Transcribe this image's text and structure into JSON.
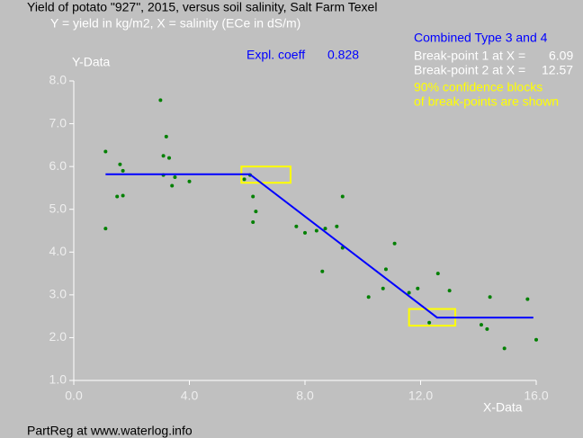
{
  "chart_data": {
    "type": "scatter",
    "title": "Yield of potato \"927\", 2015, versus soil salinity, Salt Farm Texel",
    "subtitle": "Y = yield in kg/m2, X = salinity (ECe in dS/m)",
    "ylabel": "Y-Data",
    "xlabel": "X-Data",
    "footer": "PartReg at www.waterlog.info",
    "fit_title": "Combined Type 3 and 4",
    "coeff_label": "Expl. coeff",
    "coeff": 0.828,
    "break_points": [
      {
        "label": "Break-point 1 at X =",
        "value": 6.09
      },
      {
        "label": "Break-point 2 at X =",
        "value": 12.57
      }
    ],
    "block_note": [
      "90% confidence blocks",
      "of break-points are shown"
    ],
    "xlim": [
      0,
      16
    ],
    "ylim": [
      1,
      8
    ],
    "xticks": [
      {
        "value": 0,
        "label": "0.0"
      },
      {
        "value": 4,
        "label": "4.0"
      },
      {
        "value": 8,
        "label": "8.0"
      },
      {
        "value": 12,
        "label": "12.0"
      },
      {
        "value": 16,
        "label": "16.0"
      }
    ],
    "yticks": [
      {
        "value": 1,
        "label": "1.0"
      },
      {
        "value": 2,
        "label": "2.0"
      },
      {
        "value": 3,
        "label": "3.0"
      },
      {
        "value": 4,
        "label": "4.0"
      },
      {
        "value": 5,
        "label": "5.0"
      },
      {
        "value": 6,
        "label": "6.0"
      },
      {
        "value": 7,
        "label": "7.0"
      },
      {
        "value": 8,
        "label": "8.0"
      }
    ],
    "color": "#008000",
    "x": [
      1.1,
      1.1,
      1.5,
      1.6,
      1.7,
      1.7,
      3.0,
      3.1,
      3.1,
      3.2,
      3.3,
      3.4,
      3.5,
      4.0,
      5.9,
      6.1,
      6.2,
      6.2,
      6.3,
      7.7,
      8.0,
      8.4,
      8.6,
      8.7,
      9.1,
      9.3,
      9.3,
      10.2,
      10.7,
      10.8,
      11.1,
      11.6,
      11.9,
      12.3,
      12.6,
      13.0,
      14.1,
      14.3,
      14.4,
      14.9,
      15.7,
      16.0
    ],
    "values": [
      6.35,
      4.55,
      5.3,
      6.05,
      5.9,
      5.32,
      7.55,
      6.25,
      5.8,
      6.7,
      6.2,
      5.55,
      5.75,
      5.65,
      5.7,
      5.8,
      5.3,
      4.7,
      4.95,
      4.6,
      4.45,
      4.5,
      3.55,
      4.55,
      4.6,
      5.3,
      4.1,
      2.95,
      3.15,
      3.6,
      4.2,
      3.05,
      3.15,
      2.35,
      3.5,
      3.1,
      2.3,
      2.2,
      2.95,
      1.75,
      2.9,
      1.95
    ],
    "fit": {
      "color": "#0000ff",
      "x": [
        1.1,
        6.09,
        12.57,
        15.9
      ],
      "y": [
        5.82,
        5.82,
        2.47,
        2.47
      ]
    },
    "blocks": [
      {
        "color": "#ffff00",
        "x": [
          5.8,
          7.5
        ],
        "y": [
          5.62,
          6.0
        ]
      },
      {
        "color": "#ffff00",
        "x": [
          11.6,
          13.2
        ],
        "y": [
          2.28,
          2.67
        ]
      }
    ]
  }
}
